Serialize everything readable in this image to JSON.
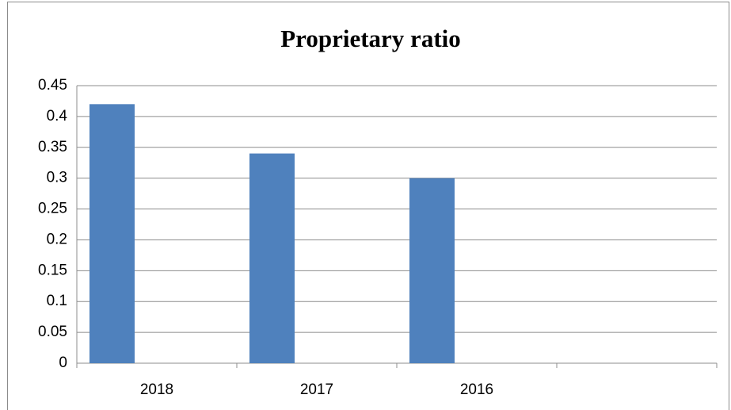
{
  "chart_data": {
    "type": "bar",
    "title": "Proprietary ratio",
    "categories": [
      "2018",
      "2017",
      "2016",
      null
    ],
    "values": [
      0.42,
      0.34,
      0.3,
      null
    ],
    "color": "#4f81bd",
    "ylim": [
      0,
      0.45
    ],
    "yticks": [
      0,
      0.05,
      0.1,
      0.15,
      0.2,
      0.25,
      0.3,
      0.35,
      0.4,
      0.45
    ],
    "grid": true
  }
}
